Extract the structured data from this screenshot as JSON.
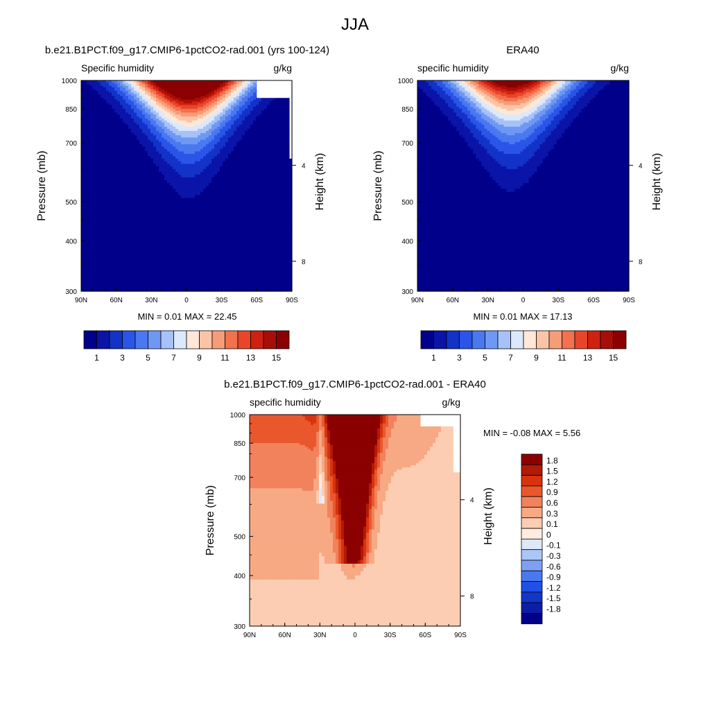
{
  "figure": {
    "title": "JJA"
  },
  "colors": {
    "abs_palette": [
      "#00008b",
      "#0a14a8",
      "#1232c8",
      "#2a55e8",
      "#4a78f0",
      "#6f98f4",
      "#a6c2f8",
      "#dce8fc",
      "#ffe8d8",
      "#fbc4a6",
      "#f79c78",
      "#f2714e",
      "#e9452a",
      "#d02010",
      "#a80e08",
      "#8b0000"
    ],
    "diff_palette": [
      "#00008b",
      "#0a1eaa",
      "#1236c8",
      "#2050e6",
      "#4a78f0",
      "#7ea0f4",
      "#acc6f8",
      "#dce8fc",
      "#ffece0",
      "#fccdb2",
      "#f7a984",
      "#f1825c",
      "#e8582c",
      "#d8320e",
      "#b01a06",
      "#8b0000"
    ]
  },
  "chart_data": [
    {
      "type": "contour",
      "title": "b.e21.B1PCT.f09_g17.CMIP6-1pctCO2-rad.001 (yrs 100-124)",
      "left_string": "Specific humidity",
      "right_string": "g/kg",
      "ylabel": "Pressure (mb)",
      "y2label": "Height (km)",
      "yticks": [
        "300",
        "400",
        "500",
        "700",
        "850",
        "1000"
      ],
      "y2ticks": [
        "8",
        "4"
      ],
      "xticks": [
        "90N",
        "60N",
        "30N",
        "0",
        "30S",
        "60S",
        "90S"
      ],
      "xlim": [
        90,
        -90
      ],
      "ylim": [
        1000,
        300
      ],
      "y_scale": "log-pressure",
      "min_max_text": "MIN =   0.01  MAX =  22.45",
      "min": 0.01,
      "max": 22.45,
      "peak_lat": -2,
      "peak_p": 1000,
      "colorbar_labels": [
        "1",
        "3",
        "5",
        "7",
        "9",
        "11",
        "13",
        "15"
      ]
    },
    {
      "type": "contour",
      "title": "ERA40",
      "left_string": "specific humidity",
      "right_string": "g/kg",
      "ylabel": "Pressure (mb)",
      "y2label": "Height (km)",
      "yticks": [
        "300",
        "400",
        "500",
        "700",
        "850",
        "1000"
      ],
      "y2ticks": [
        "8",
        "4"
      ],
      "xticks": [
        "90N",
        "60N",
        "30N",
        "0",
        "30S",
        "60S",
        "90S"
      ],
      "xlim": [
        90,
        -90
      ],
      "ylim": [
        1000,
        300
      ],
      "y_scale": "log-pressure",
      "min_max_text": "MIN =   0.01  MAX =  17.13",
      "min": 0.01,
      "max": 17.13,
      "peak_lat": 10,
      "peak_p": 1000,
      "colorbar_labels": [
        "1",
        "3",
        "5",
        "7",
        "9",
        "11",
        "13",
        "15"
      ]
    },
    {
      "type": "contour",
      "title": "b.e21.B1PCT.f09_g17.CMIP6-1pctCO2-rad.001 - ERA40",
      "left_string": "specific humidity",
      "right_string": "g/kg",
      "ylabel": "Pressure (mb)",
      "y2label": "Height (km)",
      "yticks": [
        "300",
        "400",
        "500",
        "700",
        "850",
        "1000"
      ],
      "y2ticks": [
        "8",
        "4"
      ],
      "xticks": [
        "90N",
        "60N",
        "30N",
        "0",
        "30S",
        "60S",
        "90S"
      ],
      "xlim": [
        90,
        -90
      ],
      "ylim": [
        1000,
        300
      ],
      "y_scale": "log-pressure",
      "min_max_text": "MIN =  -0.08  MAX =   5.56",
      "min": -0.08,
      "max": 5.56,
      "colorbar_labels": [
        "1.8",
        "1.5",
        "1.2",
        "0.9",
        "0.6",
        "0.3",
        "0.1",
        "0",
        "-0.1",
        "-0.3",
        "-0.6",
        "-0.9",
        "-1.2",
        "-1.5",
        "-1.8"
      ]
    }
  ]
}
